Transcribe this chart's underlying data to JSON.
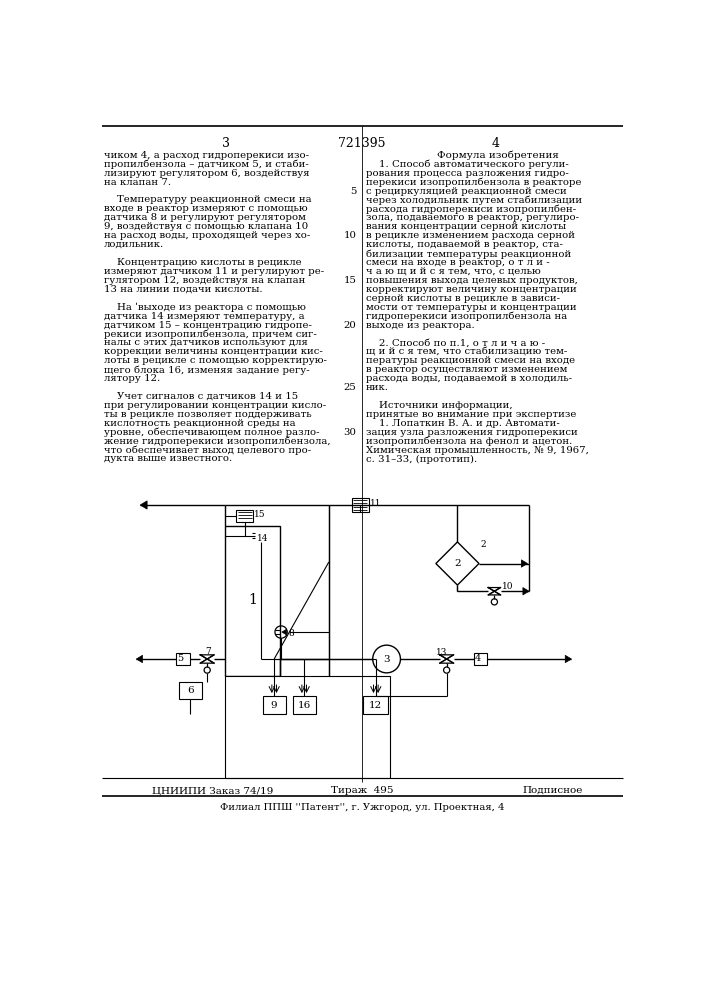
{
  "page_number_left": "3",
  "page_number_right": "4",
  "patent_number": "721395",
  "left_text": [
    "чиком 4, а расход гидроперекиси изо-",
    "пропилбензола – датчиком 5, и стаби-",
    "лизируют регулятором 6, воздействуя",
    "на клапан 7.",
    "",
    "    Температуру реакционной смеси на",
    "входе в реактор измеряют с помощью",
    "датчика 8 и регулируют регулятором",
    "9, воздействуя с помощью клапана 10",
    "на расход воды, проходящей через хо-",
    "лодильник.",
    "",
    "    Концентрацию кислоты в рецикле",
    "измеряют датчиком 11 и регулируют ре-",
    "гулятором 12, воздействуя на клапан",
    "13 на линии подачи кислоты.",
    "",
    "    На ʹвыходе из реактора с помощью",
    "датчика 14 измеряют температуру, а",
    "датчиком 15 – концентрацию гидропе-",
    "рекиси изопропилбензола, причем сиг-",
    "налы с этих датчиков используют для",
    "коррекции величины концентрации кис-",
    "лоты в рецикле с помощью корректирую-",
    "щего блока 16, изменяя задание регу-",
    "лятору 12.",
    "",
    "    Учет сигналов с датчиков 14 и 15",
    "при регулировании концентрации кисло-",
    "ты в рецикле позволяет поддерживать",
    "кислотность реакционной среды на",
    "уровне, обеспечивающем полное разло-",
    "жение гидроперекиси изопропилбензола,",
    "что обеспечивает выход целевого про-",
    "дукта выше известного."
  ],
  "right_header": "Формула изобретения",
  "right_text": [
    "    1. Способ автоматического регули-",
    "рования процесса разложения гидро-",
    "перекиси изопропилбензола в реакторе",
    "с рециркуляцией реакционной смеси",
    "через холодильник путем стабилизации",
    "расхода гидроперекиси изопропилбен-",
    "зола, подаваемого в реактор, регулиро-",
    "вания концентрации серной кислоты",
    "в рецикле изменением расхода серной",
    "кислоты, подаваемой в реактор, ста-",
    "билизации температуры реакционной",
    "смеси на входе в реактор, о т л и -",
    "ч а ю щ и й с я тем, что, с целью",
    "повышения выхода целевых продуктов,",
    "корректируют величину концентрации",
    "серной кислоты в рецикле в зависи-",
    "мости от температуры и концентрации",
    "гидроперекиси изопропилбензола на",
    "выходе из реактора.",
    "",
    "    2. Способ по п.1, о т л и ч а ю -",
    "щ и й с я тем, что стабилизацию тем-",
    "пературы реакционной смеси на входе",
    "в реактор осуществляют изменением",
    "расхода воды, подаваемой в холодиль-",
    "ник.",
    "",
    "    Источники информации,",
    "принятые во внимание при экспертизе",
    "    1. Лопаткин В. А. и др. Автомати-",
    "зация узла разложения гидроперекиси",
    "изопропилбензола на фенол и ацетон.",
    "Химическая промышленность, № 9, 1967,",
    "с. 31–33, (прототип)."
  ],
  "line_num_indices": [
    4,
    9,
    14,
    19,
    26,
    31
  ],
  "line_num_values": [
    "5",
    "10",
    "15",
    "20",
    "25",
    "30"
  ],
  "bottom_left_text": "ЦНИИПИ Заказ 74/19",
  "bottom_center_text": "Тираж  495",
  "bottom_right_text": "Подписное",
  "footer_text": "Филиал ППШ ''Патент'', г. Ужгород, ул. Проектная, 4",
  "bg_color": "#ffffff",
  "text_color": "#000000"
}
